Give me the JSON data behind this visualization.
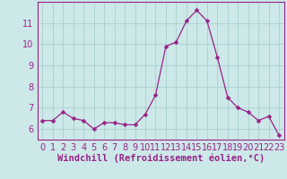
{
  "x": [
    0,
    1,
    2,
    3,
    4,
    5,
    6,
    7,
    8,
    9,
    10,
    11,
    12,
    13,
    14,
    15,
    16,
    17,
    18,
    19,
    20,
    21,
    22,
    23
  ],
  "y": [
    6.4,
    6.4,
    6.8,
    6.5,
    6.4,
    6.0,
    6.3,
    6.3,
    6.2,
    6.2,
    6.7,
    7.6,
    9.9,
    10.1,
    11.1,
    11.6,
    11.1,
    9.4,
    7.5,
    7.0,
    6.8,
    6.4,
    6.6,
    5.7
  ],
  "line_color": "#992288",
  "marker": "D",
  "marker_size": 2.5,
  "bg_color": "#CCE8E8",
  "grid_color": "#AACFCF",
  "xlabel": "Windchill (Refroidissement éolien,°C)",
  "xlabel_fontsize": 7.5,
  "tick_fontsize": 7,
  "ylim": [
    5.5,
    12.0
  ],
  "xlim": [
    -0.5,
    23.5
  ],
  "yticks": [
    6,
    7,
    8,
    9,
    10,
    11
  ],
  "xticks": [
    0,
    1,
    2,
    3,
    4,
    5,
    6,
    7,
    8,
    9,
    10,
    11,
    12,
    13,
    14,
    15,
    16,
    17,
    18,
    19,
    20,
    21,
    22,
    23
  ],
  "label_color": "#992288",
  "bottom_bar_color": "#7700AA",
  "spine_color": "#992288"
}
